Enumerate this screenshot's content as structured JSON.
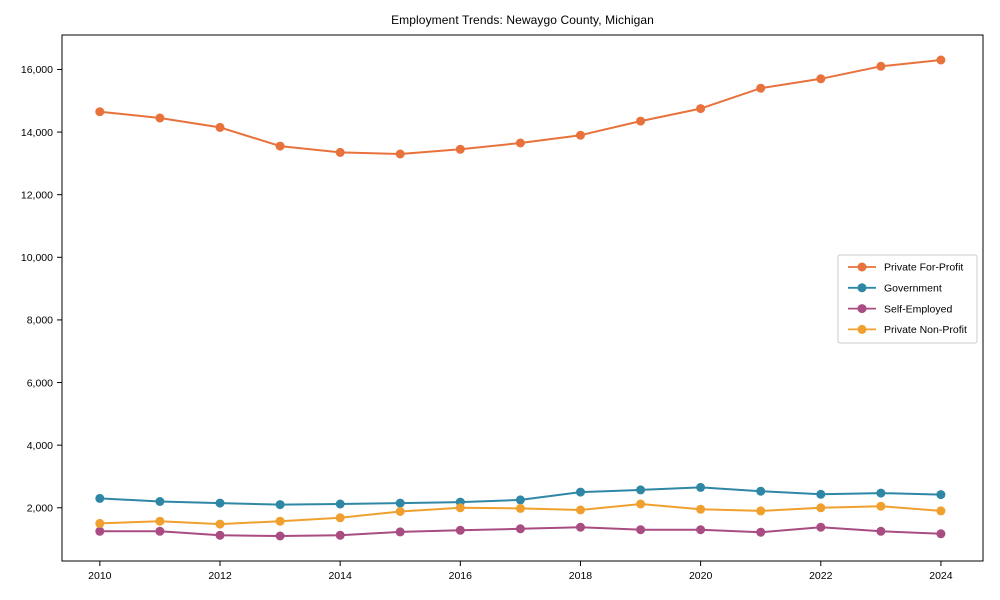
{
  "chart_data": {
    "type": "line",
    "title": "Employment Trends: Newaygo County, Michigan",
    "xlabel": "",
    "ylabel": "",
    "grid": false,
    "x": [
      2010,
      2011,
      2012,
      2013,
      2014,
      2015,
      2016,
      2017,
      2018,
      2019,
      2020,
      2021,
      2022,
      2023,
      2024
    ],
    "series": [
      {
        "name": "Private For-Profit",
        "color": "#e8713c",
        "values": [
          14650,
          14450,
          14150,
          13550,
          13350,
          13300,
          13450,
          13650,
          13900,
          14350,
          14750,
          15400,
          15700,
          16100,
          16300
        ]
      },
      {
        "name": "Government",
        "color": "#2f87a6",
        "values": [
          2300,
          2200,
          2150,
          2100,
          2120,
          2150,
          2180,
          2250,
          2500,
          2570,
          2650,
          2530,
          2430,
          2470,
          2420
        ]
      },
      {
        "name": "Self-Employed",
        "color": "#a84c82",
        "values": [
          1250,
          1250,
          1120,
          1100,
          1120,
          1230,
          1280,
          1330,
          1380,
          1300,
          1300,
          1220,
          1380,
          1250,
          1170
        ]
      },
      {
        "name": "Private Non-Profit",
        "color": "#f0a02f",
        "values": [
          1500,
          1570,
          1480,
          1570,
          1680,
          1880,
          2000,
          1980,
          1930,
          2120,
          1950,
          1900,
          2000,
          2050,
          1900
        ]
      }
    ],
    "xlim": [
      2009.37,
      2024.7
    ],
    "ylim": [
      300,
      17100
    ],
    "x_ticks": [
      2010,
      2012,
      2014,
      2016,
      2018,
      2020,
      2022,
      2024
    ],
    "x_tick_labels": [
      "2010",
      "2012",
      "2014",
      "2016",
      "2018",
      "2020",
      "2022",
      "2024"
    ],
    "y_ticks": [
      2000,
      4000,
      6000,
      8000,
      10000,
      12000,
      14000,
      16000
    ],
    "y_tick_labels": [
      "2,000",
      "4,000",
      "6,000",
      "8,000",
      "10,000",
      "12,000",
      "14,000",
      "16,000"
    ],
    "legend": {
      "position": "center-right",
      "entries": [
        "Private For-Profit",
        "Government",
        "Self-Employed",
        "Private Non-Profit"
      ]
    },
    "colors": {
      "axis": "#000000",
      "background": "#ffffff",
      "legend_border": "#cccccc"
    }
  }
}
